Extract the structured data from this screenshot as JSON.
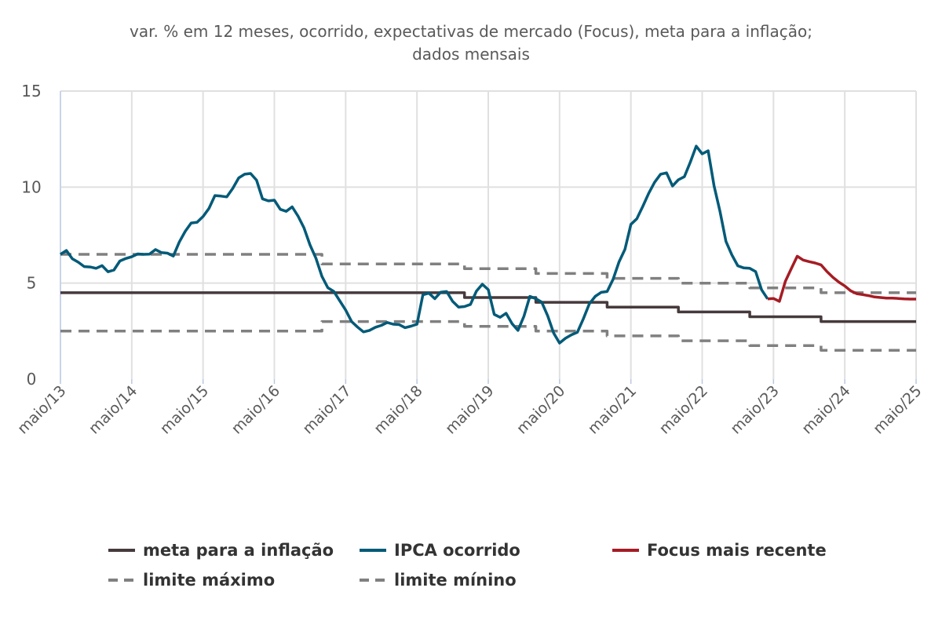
{
  "chart_data": {
    "type": "line",
    "title_lines": [
      "var. % em 12 meses, ocorrido, expectativas de mercado (Focus), meta para a inflação;",
      "dados mensais"
    ],
    "ylim": [
      0,
      15
    ],
    "yticks": [
      0,
      5,
      10,
      15
    ],
    "xlim": [
      "2013-05",
      "2025-05"
    ],
    "xticks": [
      {
        "date": "2013-05",
        "label": "maio/13"
      },
      {
        "date": "2014-05",
        "label": "maio/14"
      },
      {
        "date": "2015-05",
        "label": "maio/15"
      },
      {
        "date": "2016-05",
        "label": "maio/16"
      },
      {
        "date": "2017-05",
        "label": "maio/17"
      },
      {
        "date": "2018-05",
        "label": "maio/18"
      },
      {
        "date": "2019-05",
        "label": "maio/19"
      },
      {
        "date": "2020-05",
        "label": "maio/20"
      },
      {
        "date": "2021-05",
        "label": "maio/21"
      },
      {
        "date": "2022-05",
        "label": "maio/22"
      },
      {
        "date": "2023-05",
        "label": "maio/23"
      },
      {
        "date": "2024-05",
        "label": "maio/24"
      },
      {
        "date": "2025-05",
        "label": "maio/25"
      }
    ],
    "grid": true,
    "legend_position": "bottom",
    "series": [
      {
        "name": "meta para a inflação",
        "color": "#463a3c",
        "style": "step",
        "steps": [
          {
            "from": "2013-05",
            "value": 4.5
          },
          {
            "from": "2019-01",
            "value": 4.25
          },
          {
            "from": "2020-01",
            "value": 4.0
          },
          {
            "from": "2021-01",
            "value": 3.75
          },
          {
            "from": "2022-01",
            "value": 3.5
          },
          {
            "from": "2023-01",
            "value": 3.25
          },
          {
            "from": "2024-01",
            "value": 3.0
          }
        ],
        "to": "2025-05"
      },
      {
        "name": "IPCA ocorrido",
        "color": "#005a78",
        "style": "solid",
        "start": "2013-05",
        "values": [
          6.5,
          6.7,
          6.27,
          6.09,
          5.86,
          5.84,
          5.77,
          5.91,
          5.59,
          5.68,
          6.15,
          6.28,
          6.37,
          6.52,
          6.5,
          6.51,
          6.75,
          6.59,
          6.56,
          6.41,
          7.14,
          7.7,
          8.13,
          8.17,
          8.47,
          8.89,
          9.56,
          9.53,
          9.49,
          9.93,
          10.48,
          10.67,
          10.71,
          10.36,
          9.39,
          9.28,
          9.32,
          8.84,
          8.74,
          8.97,
          8.48,
          7.87,
          6.99,
          6.29,
          5.35,
          4.76,
          4.57,
          4.08,
          3.6,
          3.0,
          2.71,
          2.46,
          2.54,
          2.7,
          2.8,
          2.95,
          2.86,
          2.84,
          2.68,
          2.76,
          2.86,
          4.39,
          4.48,
          4.19,
          4.53,
          4.56,
          4.05,
          3.75,
          3.78,
          3.89,
          4.58,
          4.94,
          4.66,
          3.37,
          3.22,
          3.43,
          2.89,
          2.54,
          3.27,
          4.31,
          4.19,
          4.01,
          3.3,
          2.4,
          1.88,
          2.13,
          2.31,
          2.44,
          3.14,
          3.92,
          4.31,
          4.52,
          4.56,
          5.2,
          6.1,
          6.76,
          8.06,
          8.35,
          8.99,
          9.68,
          10.25,
          10.67,
          10.74,
          10.06,
          10.38,
          10.54,
          11.3,
          12.13,
          11.73,
          11.89,
          10.07,
          8.73,
          7.17,
          6.47,
          5.9,
          5.79,
          5.77,
          5.6,
          4.65,
          4.18
        ]
      },
      {
        "name": "Focus mais recente",
        "color": "#a51c24",
        "style": "solid",
        "start": "2023-04",
        "values": [
          4.18,
          4.2,
          4.05,
          5.1,
          5.75,
          6.4,
          6.2,
          6.12,
          6.05,
          5.95,
          5.6,
          5.3,
          5.05,
          4.85,
          4.6,
          4.45,
          4.4,
          4.35,
          4.28,
          4.25,
          4.22,
          4.22,
          4.2,
          4.18,
          4.17,
          4.17
        ]
      },
      {
        "name": "limite máximo",
        "color": "#808080",
        "style": "dashed",
        "steps": [
          {
            "from": "2013-05",
            "value": 6.5
          },
          {
            "from": "2017-01",
            "value": 6.0
          },
          {
            "from": "2019-01",
            "value": 5.75
          },
          {
            "from": "2020-01",
            "value": 5.5
          },
          {
            "from": "2021-01",
            "value": 5.25
          },
          {
            "from": "2022-01",
            "value": 5.0
          },
          {
            "from": "2023-01",
            "value": 4.75
          },
          {
            "from": "2024-01",
            "value": 4.5
          }
        ],
        "to": "2025-05"
      },
      {
        "name": "limite mínino",
        "color": "#808080",
        "style": "dashed",
        "steps": [
          {
            "from": "2013-05",
            "value": 2.5
          },
          {
            "from": "2017-01",
            "value": 3.0
          },
          {
            "from": "2019-01",
            "value": 2.75
          },
          {
            "from": "2020-01",
            "value": 2.5
          },
          {
            "from": "2021-01",
            "value": 2.25
          },
          {
            "from": "2022-01",
            "value": 2.0
          },
          {
            "from": "2023-01",
            "value": 1.75
          },
          {
            "from": "2024-01",
            "value": 1.5
          }
        ],
        "to": "2025-05"
      }
    ]
  }
}
